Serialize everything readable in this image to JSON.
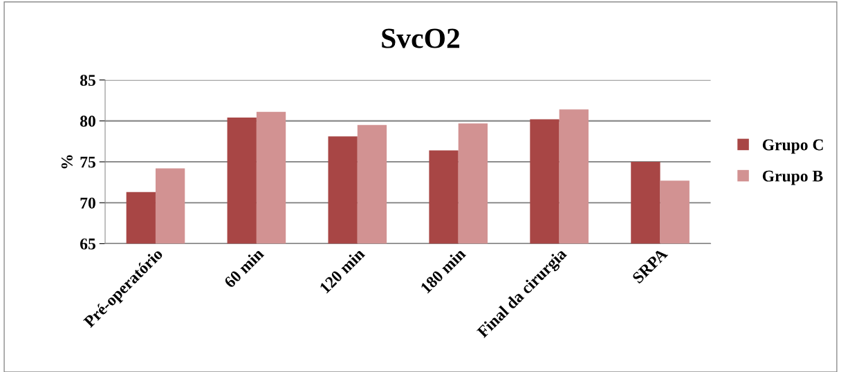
{
  "chart_data": {
    "type": "bar",
    "title": "SvcO2",
    "ylabel": "%",
    "categories": [
      "Pré-operatório",
      "60 min",
      "120 min",
      "180 min",
      "Final da cirurgia",
      "SRPA"
    ],
    "series": [
      {
        "name": "Grupo C",
        "color": "#a84645",
        "values": [
          71.3,
          80.4,
          78.1,
          76.4,
          80.2,
          75.0
        ]
      },
      {
        "name": "Grupo B",
        "color": "#d29292",
        "values": [
          74.2,
          81.1,
          79.5,
          79.7,
          81.4,
          72.7
        ]
      }
    ],
    "ylim": [
      65,
      85
    ],
    "yticks": [
      65,
      70,
      75,
      80,
      85
    ],
    "grid": "y",
    "legend": "right"
  }
}
